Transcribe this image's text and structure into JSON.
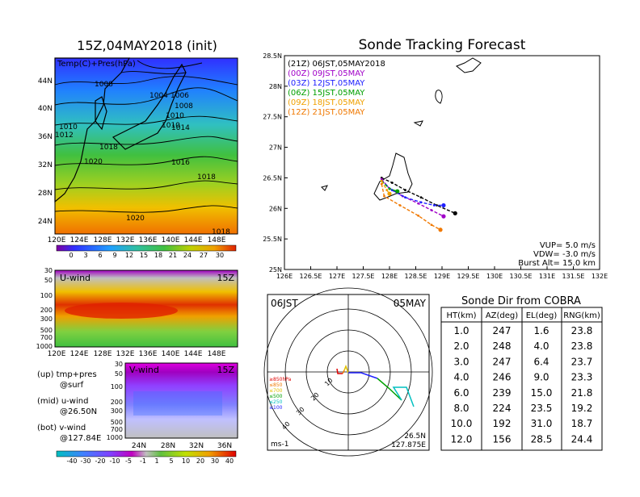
{
  "left": {
    "title": "15Z,04MAY2018 (init)",
    "map_label": "Temp(C)+Pres(hPa)",
    "isobars": [
      "1008",
      "1004",
      "1006",
      "1008",
      "1010",
      "1010",
      "1010",
      "1012",
      "1014",
      "1018",
      "1020",
      "1016",
      "1018",
      "1020",
      "1018"
    ],
    "lat_ticks": [
      "44N",
      "40N",
      "36N",
      "32N",
      "28N",
      "24N"
    ],
    "lon_ticks": [
      "120E",
      "124E",
      "128E",
      "132E",
      "136E",
      "140E",
      "144E",
      "148E"
    ],
    "temp_colorbar": [
      "0",
      "3",
      "6",
      "9",
      "12",
      "15",
      "18",
      "21",
      "24",
      "27",
      "30"
    ],
    "uwind_label": "U-wind",
    "uwind_time": "15Z",
    "vwind_label": "V-wind",
    "vwind_time": "15Z",
    "pres_ticks": [
      "30",
      "50",
      "100",
      "200",
      "300",
      "500",
      "700",
      "1000"
    ],
    "lat_ticks_v": [
      "24N",
      "28N",
      "32N",
      "36N"
    ],
    "notes": [
      "(up) tmp+pres",
      "@surf",
      "(mid) u-wind",
      "@26.50N",
      "(bot) v-wind",
      "@127.84E"
    ],
    "wind_colorbar": [
      "-40",
      "-30",
      "-20",
      "-10",
      "-5",
      "-1",
      "1",
      "5",
      "10",
      "20",
      "30",
      "40"
    ]
  },
  "tracking": {
    "title": "Sonde Tracking Forecast",
    "legend": [
      {
        "text": "(21Z) 06JST,05MAY2018",
        "color": "#000000"
      },
      {
        "text": "(00Z) 09JST,05MAY",
        "color": "#a000c8"
      },
      {
        "text": "(03Z) 12JST,05MAY",
        "color": "#2020ff"
      },
      {
        "text": "(06Z) 15JST,05MAY",
        "color": "#00a000"
      },
      {
        "text": "(09Z) 18JST,05MAY",
        "color": "#f0a000"
      },
      {
        "text": "(12Z) 21JST,05MAY",
        "color": "#f07800"
      }
    ],
    "info": [
      "VUP=  5.0 m/s",
      "VDW= -3.0 m/s",
      "Burst Alt= 15.0 km"
    ]
  },
  "polar": {
    "time": "06JST",
    "date": "05MAY",
    "levels": [
      "≥850hPa",
      "≤850",
      "≤700",
      "≤500",
      "≤250",
      "≤100"
    ],
    "level_colors": [
      "#e00000",
      "#f07800",
      "#e0c000",
      "#00a000",
      "#00c0c0",
      "#2020ff"
    ],
    "range_labels": [
      "10",
      "20",
      "30",
      "40"
    ],
    "unit": "ms-1",
    "loc_lat": "26.5N",
    "loc_lon": "127.875E"
  },
  "table": {
    "title": "Sonde Dir from COBRA",
    "headers": [
      "HT(km)",
      "AZ(deg)",
      "EL(deg)",
      "RNG(km)"
    ],
    "rows": [
      [
        "1.0",
        "247",
        "1.6",
        "23.8"
      ],
      [
        "2.0",
        "248",
        "4.0",
        "23.8"
      ],
      [
        "3.0",
        "247",
        "6.4",
        "23.7"
      ],
      [
        "4.0",
        "246",
        "9.0",
        "23.3"
      ],
      [
        "6.0",
        "239",
        "15.0",
        "21.8"
      ],
      [
        "8.0",
        "224",
        "23.5",
        "19.2"
      ],
      [
        "10.0",
        "192",
        "31.0",
        "18.7"
      ],
      [
        "12.0",
        "156",
        "28.5",
        "24.4"
      ]
    ]
  },
  "chart_data": [
    {
      "type": "line",
      "title": "Sonde Tracking Forecast",
      "xlabel": "",
      "ylabel": "",
      "xlim": [
        126,
        132
      ],
      "ylim": [
        25,
        28.5
      ],
      "x_ticks": [
        "126E",
        "126.5E",
        "127E",
        "127.5E",
        "128E",
        "128.5E",
        "129E",
        "129.5E",
        "130E",
        "130.5E",
        "131E",
        "131.5E",
        "132E"
      ],
      "y_ticks": [
        "25N",
        "25.5N",
        "26N",
        "26.5N",
        "27N",
        "27.5N",
        "28N",
        "28.5N"
      ],
      "series": [
        {
          "name": "(21Z) 06JST,05MAY2018",
          "color": "#000000",
          "x": [
            127.85,
            128.05,
            128.3,
            128.6,
            128.9,
            129.25
          ],
          "y": [
            26.5,
            26.42,
            26.3,
            26.18,
            26.05,
            25.92
          ]
        },
        {
          "name": "(00Z) 09JST,05MAY",
          "color": "#a000c8",
          "x": [
            127.85,
            128.0,
            128.25,
            128.55,
            128.8,
            129.03
          ],
          "y": [
            26.48,
            26.32,
            26.2,
            26.08,
            25.97,
            25.87
          ]
        },
        {
          "name": "(03Z) 12JST,05MAY",
          "color": "#2020ff",
          "x": [
            127.85,
            128.05,
            128.3,
            128.6,
            128.85,
            129.03
          ],
          "y": [
            26.45,
            26.3,
            26.18,
            26.1,
            26.05,
            26.05
          ]
        },
        {
          "name": "(06Z) 15JST,05MAY",
          "color": "#00a000",
          "x": [
            127.85,
            128.0,
            128.15
          ],
          "y": [
            26.45,
            26.32,
            26.28
          ]
        },
        {
          "name": "(09Z) 18JST,05MAY",
          "color": "#f0a000",
          "x": [
            127.85,
            127.95,
            128.0
          ],
          "y": [
            26.45,
            26.3,
            26.24
          ]
        },
        {
          "name": "(12Z) 21JST,05MAY",
          "color": "#f07800",
          "x": [
            127.85,
            127.9,
            128.2,
            128.55,
            128.8,
            128.97
          ],
          "y": [
            26.4,
            26.2,
            26.05,
            25.88,
            25.73,
            25.65
          ]
        }
      ]
    }
  ]
}
